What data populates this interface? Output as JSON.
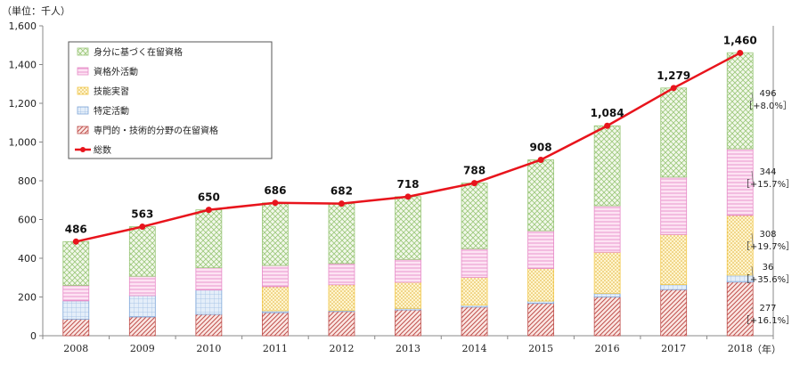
{
  "chart_data": {
    "type": "bar",
    "stacked": true,
    "unit_label": "（単位：千人）",
    "x_unit_label": "（年）",
    "categories": [
      "2008",
      "2009",
      "2010",
      "2011",
      "2012",
      "2013",
      "2014",
      "2015",
      "2016",
      "2017",
      "2018"
    ],
    "ylim": [
      0,
      1600
    ],
    "yticks": [
      0,
      200,
      400,
      600,
      800,
      1000,
      1200,
      1400,
      1600
    ],
    "ytick_labels": [
      "0",
      "200",
      "400",
      "600",
      "800",
      "1,000",
      "1,200",
      "1,400",
      "1,600"
    ],
    "series": [
      {
        "name": "専門的・技術的分野の在留資格",
        "color": "#c0504d",
        "pattern": "diag",
        "values": [
          85,
          97,
          110,
          119,
          125,
          133,
          148,
          167,
          200,
          238,
          277
        ]
      },
      {
        "name": "特定活動",
        "color": "#7ea6d8",
        "pattern": "grid",
        "values": [
          95,
          110,
          126,
          10,
          5,
          8,
          10,
          12,
          19,
          26,
          36
        ]
      },
      {
        "name": "技能実習",
        "color": "#f2c94c",
        "pattern": "dots",
        "values": [
          0,
          0,
          0,
          124,
          133,
          135,
          143,
          168,
          212,
          258,
          308
        ]
      },
      {
        "name": "資格外活動",
        "color": "#e78cc8",
        "pattern": "horiz",
        "values": [
          80,
          100,
          115,
          110,
          110,
          118,
          148,
          195,
          240,
          297,
          344
        ]
      },
      {
        "name": "身分に基づく在留資格",
        "color": "#9bc77a",
        "pattern": "cross",
        "values": [
          226,
          256,
          299,
          323,
          309,
          324,
          339,
          366,
          413,
          460,
          496
        ]
      }
    ],
    "line": {
      "name": "総数",
      "color": "#e8141c",
      "values": [
        486,
        563,
        650,
        686,
        682,
        718,
        788,
        908,
        1084,
        1279,
        1460
      ],
      "labels": [
        "486",
        "563",
        "650",
        "686",
        "682",
        "718",
        "788",
        "908",
        "1,084",
        "1,279",
        "1,460"
      ]
    },
    "annotations": [
      {
        "series": "身分に基づく在留資格",
        "value": "496",
        "change": "［+8.0%］"
      },
      {
        "series": "資格外活動",
        "value": "344",
        "change": "［+15.7%］"
      },
      {
        "series": "技能実習",
        "value": "308",
        "change": "［+19.7%］"
      },
      {
        "series": "特定活動",
        "value": "36",
        "change": "［+35.6%］"
      },
      {
        "series": "専門的・技術的分野の在留資格",
        "value": "277",
        "change": "［+16.1%］"
      }
    ],
    "legend_order": [
      "身分に基づく在留資格",
      "資格外活動",
      "技能実習",
      "特定活動",
      "専門的・技術的分野の在留資格",
      "総数"
    ],
    "legend_position": "top-left",
    "grid": false
  }
}
